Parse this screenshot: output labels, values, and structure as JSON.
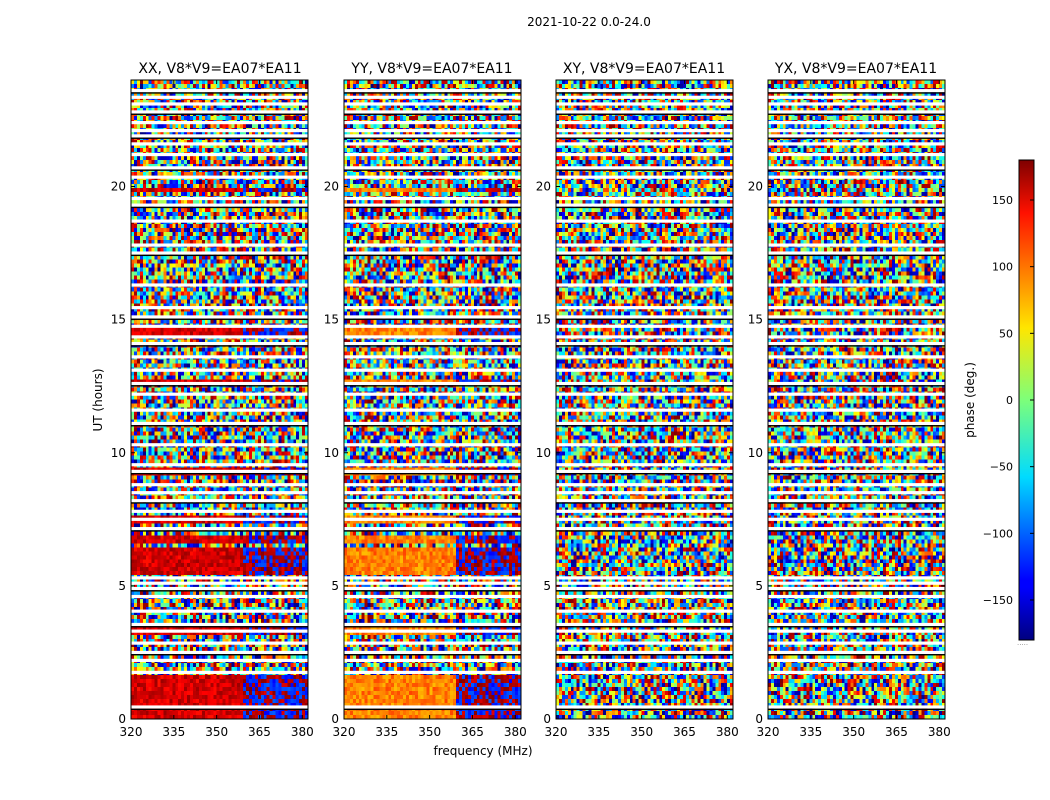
{
  "suptitle": "2021-10-22 0.0-24.0",
  "chart_data": {
    "type": "heatmap",
    "xlabel": "frequency (MHz)",
    "ylabel": "UT (hours)",
    "xlim": [
      320,
      382
    ],
    "ylim": [
      0,
      24
    ],
    "xticks": [
      320,
      335,
      350,
      365,
      380
    ],
    "yticks": [
      0,
      5,
      10,
      15,
      20
    ],
    "colormap": "jet",
    "colorbar": {
      "label": "phase (deg.)",
      "range": [
        -180,
        180
      ],
      "ticks": [
        150,
        100,
        50,
        0,
        -50,
        -100,
        -150
      ],
      "tick_labels": [
        "150",
        "100",
        "50",
        "0",
        "−50",
        "−100",
        "−150"
      ],
      "footnote": "·····"
    },
    "panels": [
      {
        "id": "xx",
        "title": "XX, V8*V9=EA07*EA11",
        "coherent": true,
        "base_phase": 150
      },
      {
        "id": "yy",
        "title": "YY, V8*V9=EA07*EA11",
        "coherent": true,
        "base_phase": 90
      },
      {
        "id": "xy",
        "title": "XY, V8*V9=EA07*EA11",
        "coherent": false,
        "base_phase": 0
      },
      {
        "id": "yx",
        "title": "YX, V8*V9=EA07*EA11",
        "coherent": false,
        "base_phase": 0
      }
    ],
    "flagged_hours": [
      0.45,
      1.75,
      2.2,
      2.5,
      2.85,
      3.3,
      3.55,
      4.05,
      4.6,
      4.9,
      5.1,
      5.3,
      7.15,
      7.5,
      7.8,
      8.2,
      8.5,
      8.8,
      9.3,
      9.55,
      10.3,
      11.1,
      11.6,
      12.2,
      12.6,
      13.1,
      13.6,
      14.1,
      14.35,
      14.75,
      15.1,
      15.45,
      16.3,
      17.5,
      17.8,
      18.7,
      19.3,
      19.55,
      20.35,
      20.7,
      21.2,
      21.6,
      21.9,
      22.1,
      22.4,
      22.8,
      23.1,
      23.35,
      23.6
    ],
    "coherent_bands_hours": [
      [
        19.85,
        20.0
      ],
      [
        14.45,
        14.65
      ],
      [
        12.6,
        12.8
      ],
      [
        9.2,
        9.4
      ],
      [
        7.3,
        7.6
      ],
      [
        6.6,
        6.95
      ],
      [
        5.45,
        6.45
      ],
      [
        3.2,
        3.6
      ],
      [
        0.0,
        1.7
      ]
    ]
  }
}
